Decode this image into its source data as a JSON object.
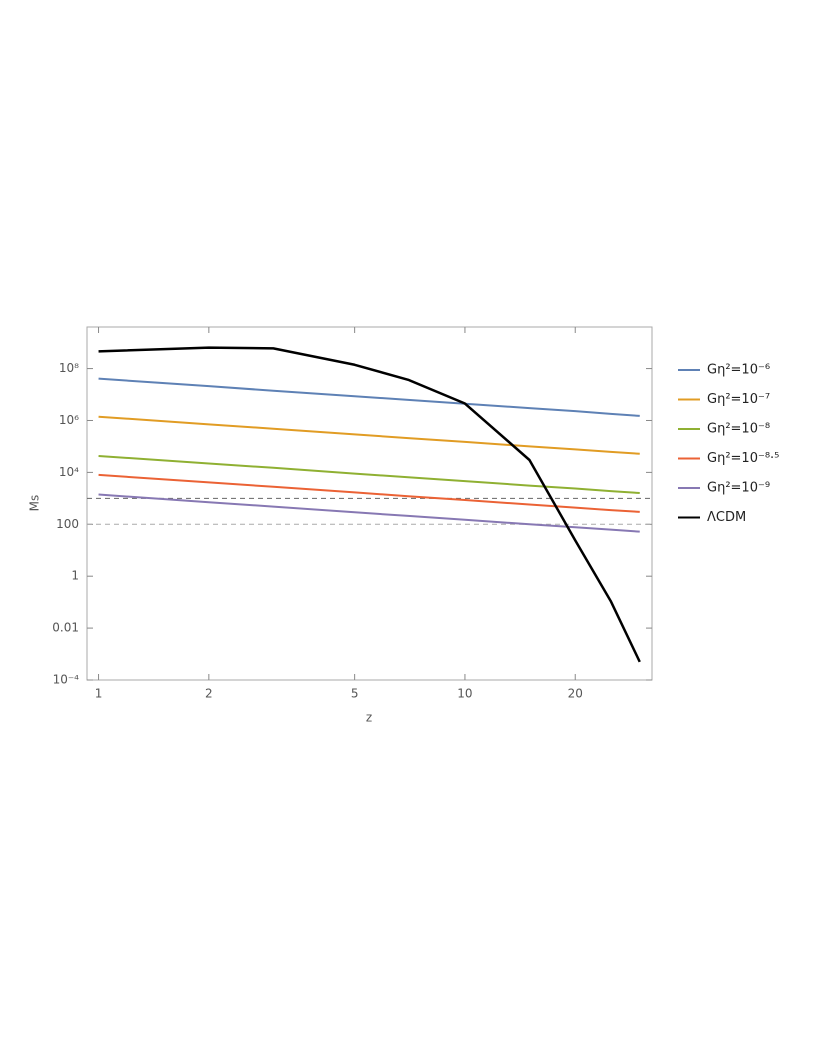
{
  "chart_data": {
    "type": "line",
    "x_label": "z",
    "y_label": "Ms",
    "x": [
      1,
      2,
      3,
      5,
      7,
      10,
      15,
      20,
      25,
      30
    ],
    "series": [
      {
        "name": "Gη²=10⁻⁶",
        "color": "#5e81b5",
        "values": [
          41000000,
          21000000,
          14000000,
          8600000,
          6200000,
          4400000,
          3000000,
          2300000,
          1800000,
          1500000
        ]
      },
      {
        "name": "Gη²=10⁻⁷",
        "color": "#e19c24",
        "values": [
          1400000,
          710000,
          480000,
          290000,
          210000,
          150000,
          100000,
          77000,
          62000,
          52000
        ]
      },
      {
        "name": "Gη²=10⁻⁸",
        "color": "#8fb032",
        "values": [
          43000,
          22000,
          15000,
          9000,
          6500,
          4600,
          3100,
          2400,
          1900,
          1600
        ]
      },
      {
        "name": "Gη²=10⁻⁸·⁵",
        "color": "#eb6235",
        "values": [
          8000,
          4100,
          2800,
          1700,
          1200,
          860,
          580,
          440,
          350,
          300
        ]
      },
      {
        "name": "Gη²=10⁻⁹",
        "color": "#8778b3",
        "values": [
          1400,
          710,
          480,
          290,
          210,
          150,
          100,
          77,
          62,
          52
        ]
      },
      {
        "name": "ΛCDM",
        "color": "#000000",
        "values": [
          460000000,
          640000000,
          600000000,
          140000000,
          37000000,
          4500000,
          30000,
          24,
          0.11,
          0.0005
        ]
      }
    ],
    "reference_lines": [
      {
        "value": 1000,
        "color": "#666666"
      },
      {
        "value": 100,
        "color": "#aaaaaa"
      }
    ],
    "xlim": [
      0.93,
      32.4
    ],
    "xticks": [
      1,
      2,
      5,
      10,
      20
    ],
    "ylim": [
      0.0001,
      4000000000
    ],
    "yticks": [
      {
        "value": 100000000,
        "label": "10⁸"
      },
      {
        "value": 1000000,
        "label": "10⁶"
      },
      {
        "value": 10000,
        "label": "10⁴"
      },
      100,
      1,
      0.01,
      {
        "value": 0.0001,
        "label": "10⁻⁴"
      }
    ],
    "x_scale": "log",
    "y_scale": "log",
    "grid": false,
    "legend": "right"
  }
}
